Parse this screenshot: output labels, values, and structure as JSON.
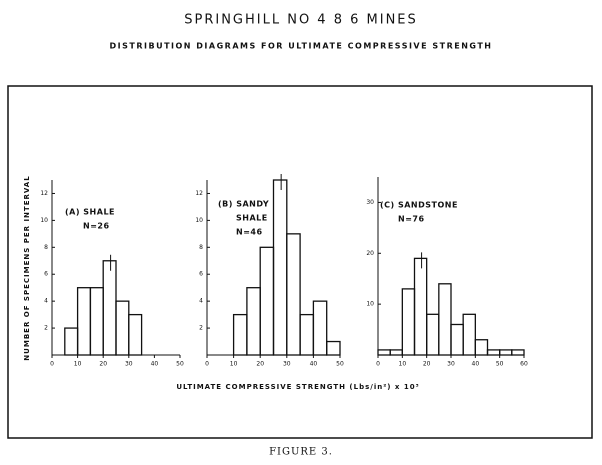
{
  "title": "SPRINGHILL NO 4 8 6 MINES",
  "subtitle": "DISTRIBUTION DIAGRAMS FOR ULTIMATE COMPRESSIVE STRENGTH",
  "ylabel": "NUMBER OF SPECIMENS PER INTERVAL",
  "xlabel": "ULTIMATE COMPRESSIVE STRENGTH (Lbs/in²) x 10³",
  "caption": "FIGURE 3.",
  "chart_data": [
    {
      "type": "histogram",
      "label_lines": [
        "(A) SHALE",
        "N=26"
      ],
      "bins": [
        5,
        10,
        15,
        20,
        25,
        30,
        35
      ],
      "counts": [
        2,
        5,
        5,
        7,
        4,
        3
      ],
      "xlim": [
        0,
        50
      ],
      "xticks": [
        0,
        10,
        20,
        30,
        40,
        50
      ],
      "ylim": [
        0,
        13
      ],
      "yticks": [
        2,
        4,
        6,
        8,
        10,
        12
      ],
      "color": "#111111"
    },
    {
      "type": "histogram",
      "label_lines": [
        "(B) SANDY",
        "SHALE",
        "N=46"
      ],
      "bins": [
        10,
        15,
        20,
        25,
        30,
        35,
        40,
        45,
        50
      ],
      "counts": [
        3,
        5,
        8,
        13,
        9,
        3,
        4,
        1
      ],
      "xlim": [
        0,
        50
      ],
      "xticks": [
        0,
        10,
        20,
        30,
        40,
        50
      ],
      "ylim": [
        0,
        13
      ],
      "yticks": [
        2,
        4,
        6,
        8,
        10,
        12
      ],
      "color": "#111111"
    },
    {
      "type": "histogram",
      "label_lines": [
        "(C) SANDSTONE",
        "N=76"
      ],
      "bins": [
        0,
        5,
        10,
        15,
        20,
        25,
        30,
        35,
        40,
        45,
        50,
        55,
        60
      ],
      "counts": [
        1,
        1,
        13,
        19,
        8,
        14,
        6,
        8,
        3,
        1,
        1,
        1
      ],
      "xlim": [
        0,
        60
      ],
      "xticks": [
        0,
        10,
        20,
        30,
        40,
        50,
        60
      ],
      "ylim": [
        0,
        35
      ],
      "yticks": [
        10,
        20,
        30
      ],
      "color": "#111111"
    }
  ]
}
